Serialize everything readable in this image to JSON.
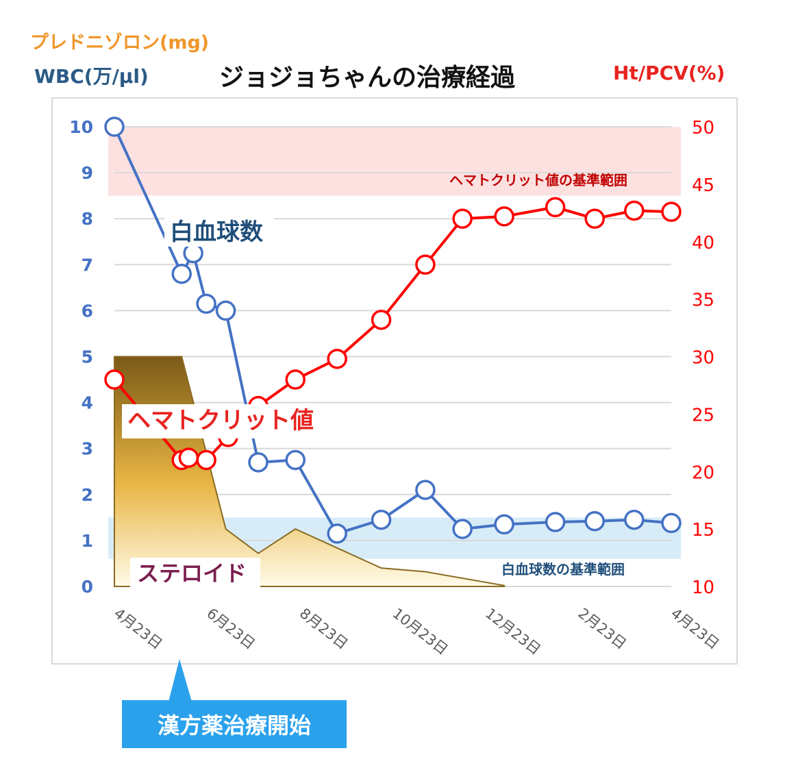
{
  "labels": {
    "prednisolone_axis": "プレドニゾロン(mg)",
    "wbc_axis": "WBC(万/μl)",
    "title": "ジョジョちゃんの治療経過",
    "ht_axis": "Ht/PCV(%)",
    "wbc_series_label": "白血球数",
    "ht_series_label": "ヘマトクリット値",
    "steroid_label": "ステロイド",
    "ht_reference_label": "ヘマトクリット値の基準範囲",
    "wbc_reference_label": "白血球数の基準範囲",
    "callout": "漢方薬治療開始"
  },
  "colors": {
    "wbc": "#4472c4",
    "ht": "#ff0000",
    "steroid_top": "#7a5a16",
    "steroid_mid": "#e8b544",
    "steroid_bottom": "#fffbe8",
    "ht_band": "#fde1e1",
    "wbc_band": "#d8ecf8",
    "callout": "#2ba1ec"
  },
  "chart_data": {
    "type": "line",
    "title": "ジョジョちゃんの治療経過",
    "x_ticks": [
      "4月23日",
      "6月23日",
      "8月23日",
      "10月23日",
      "12月23日",
      "2月23日",
      "4月23日"
    ],
    "x_range": [
      0,
      12
    ],
    "left_axis": {
      "label": "WBC(万/μl)",
      "range": [
        0,
        10
      ],
      "ticks": [
        0,
        1,
        2,
        3,
        4,
        5,
        6,
        7,
        8,
        9,
        10
      ]
    },
    "right_axis": {
      "label": "Ht/PCV(%)",
      "range": [
        10,
        50
      ],
      "ticks": [
        10,
        15,
        20,
        25,
        30,
        35,
        40,
        45,
        50
      ]
    },
    "grid": true,
    "reference_bands": [
      {
        "name": "ヘマトクリット値の基準範囲",
        "axis": "right",
        "from": 44,
        "to": 50
      },
      {
        "name": "白血球数の基準範囲",
        "axis": "left",
        "from": 0.6,
        "to": 1.5
      }
    ],
    "series": [
      {
        "name": "白血球数",
        "axis": "left",
        "kind": "line",
        "points": [
          [
            0,
            10
          ],
          [
            1.45,
            6.8
          ],
          [
            1.7,
            7.25
          ],
          [
            1.98,
            6.15
          ],
          [
            2.4,
            6.0
          ],
          [
            3.1,
            2.7
          ],
          [
            3.9,
            2.75
          ],
          [
            4.8,
            1.15
          ],
          [
            5.75,
            1.45
          ],
          [
            6.7,
            2.1
          ],
          [
            7.5,
            1.25
          ],
          [
            8.4,
            1.35
          ],
          [
            9.5,
            1.4
          ],
          [
            10.35,
            1.42
          ],
          [
            11.2,
            1.45
          ],
          [
            12.0,
            1.38
          ]
        ]
      },
      {
        "name": "ヘマトクリット値",
        "axis": "right",
        "kind": "line",
        "points": [
          [
            0,
            28
          ],
          [
            1.45,
            21
          ],
          [
            1.6,
            21.2
          ],
          [
            1.98,
            21
          ],
          [
            2.45,
            23
          ],
          [
            3.1,
            25.7
          ],
          [
            3.9,
            28
          ],
          [
            4.8,
            29.8
          ],
          [
            5.75,
            33.2
          ],
          [
            6.7,
            38
          ],
          [
            7.5,
            42
          ],
          [
            8.4,
            42.2
          ],
          [
            9.5,
            43
          ],
          [
            10.35,
            42
          ],
          [
            11.2,
            42.7
          ],
          [
            12.0,
            42.6
          ]
        ]
      },
      {
        "name": "ステロイド",
        "axis": "left",
        "kind": "area",
        "points": [
          [
            0,
            5
          ],
          [
            1.45,
            5
          ],
          [
            2.4,
            1.25
          ],
          [
            3.1,
            0.72
          ],
          [
            3.9,
            1.25
          ],
          [
            5.75,
            0.4
          ],
          [
            6.7,
            0.32
          ],
          [
            8.4,
            0.02
          ]
        ]
      }
    ]
  }
}
